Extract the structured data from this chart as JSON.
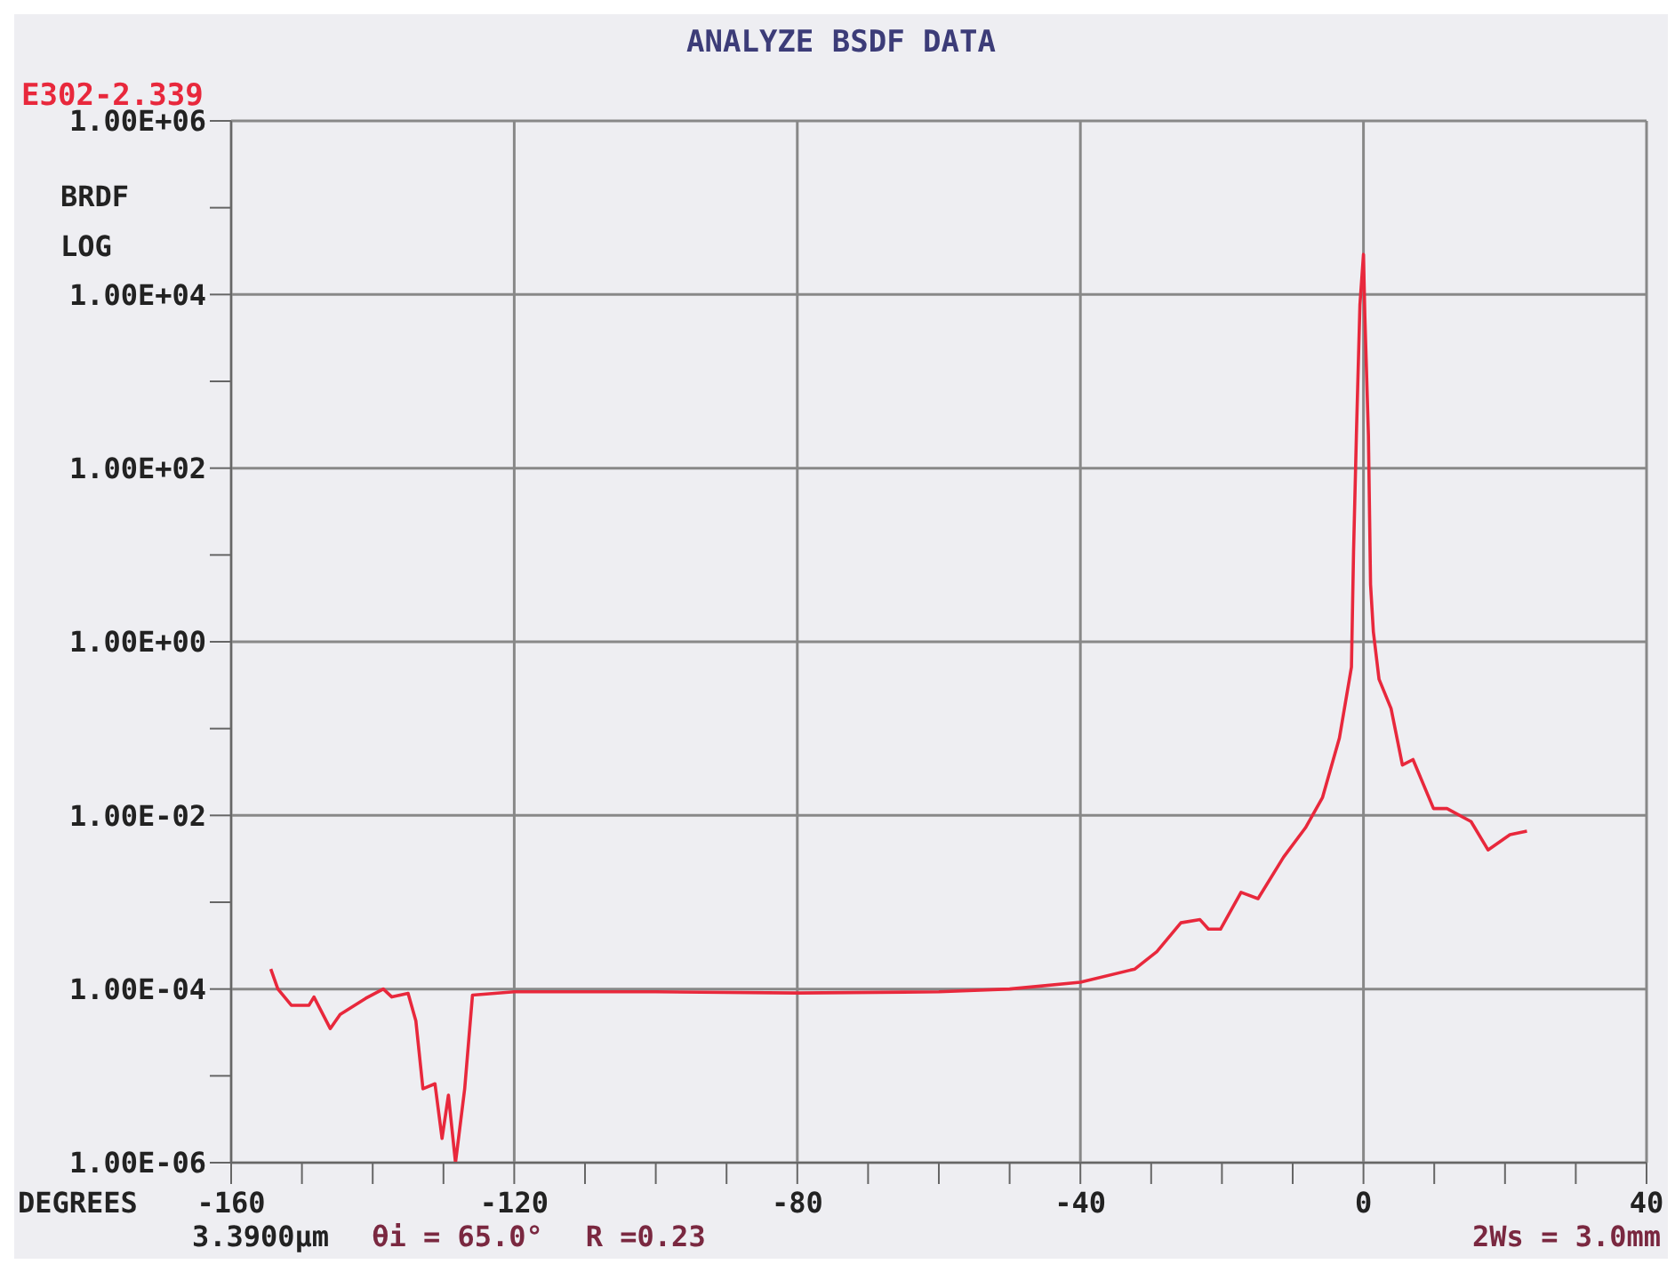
{
  "chart_data": {
    "type": "line",
    "title": "ANALYZE BSDF DATA",
    "subtitle": "E302-2.339",
    "ylabel": "BRDF LOG",
    "xlabel": "DEGREES",
    "annotations": [
      "3.3900µm",
      "θi = 65.0°",
      "R =0.23",
      "2Ws = 3.0mm"
    ],
    "log": "y",
    "grid": true,
    "legend": false,
    "marker": "none",
    "line_style": "solid",
    "xlim": [
      -160,
      40
    ],
    "xticks": [
      -160,
      {
        "value": -150,
        "label": null
      },
      {
        "value": -140,
        "label": null
      },
      {
        "value": -130,
        "label": null
      },
      -120,
      {
        "value": -110,
        "label": null
      },
      {
        "value": -100,
        "label": null
      },
      {
        "value": -90,
        "label": null
      },
      -80,
      {
        "value": -70,
        "label": null
      },
      {
        "value": -60,
        "label": null
      },
      {
        "value": -50,
        "label": null
      },
      -40,
      {
        "value": -30,
        "label": null
      },
      {
        "value": -20,
        "label": null
      },
      {
        "value": -10,
        "label": null
      },
      0,
      {
        "value": 10,
        "label": null
      },
      {
        "value": 20,
        "label": null
      },
      {
        "value": 30,
        "label": null
      },
      40
    ],
    "ylim": [
      1e-06,
      1000000.0
    ],
    "yticks": [
      {
        "value": 1e-06,
        "label": "1.00E-06"
      },
      {
        "value": 1e-05,
        "label": null
      },
      {
        "value": 0.0001,
        "label": "1.00E-04"
      },
      {
        "value": 0.001,
        "label": null
      },
      {
        "value": 0.01,
        "label": "1.00E-02"
      },
      {
        "value": 0.1,
        "label": null
      },
      {
        "value": 1,
        "label": "1.00E+00"
      },
      {
        "value": 10,
        "label": null
      },
      {
        "value": 100,
        "label": "1.00E+02"
      },
      {
        "value": 1000,
        "label": null
      },
      {
        "value": 10000,
        "label": "1.00E+04"
      },
      {
        "value": 100000,
        "label": null
      },
      {
        "value": 1000000,
        "label": "1.00E+06"
      }
    ],
    "x": [
      -154.4,
      -153.4,
      -151.5,
      -149,
      -148.3,
      -146,
      -144.6,
      -141,
      -138.5,
      -137.3,
      -135,
      -133.9,
      -132.9,
      -131.2,
      -130.2,
      -129.3,
      -128.3,
      -127,
      -125.9,
      -120,
      -100,
      -80,
      -60,
      -50,
      -40,
      -32.3,
      -29.2,
      -25.8,
      -23.1,
      -21.9,
      -20.2,
      -17.3,
      -14.9,
      -11.3,
      -8.2,
      -5.8,
      -3.4,
      -1.7,
      -1.4,
      -1.0,
      -0.5,
      0,
      0.2,
      0.7,
      1.0,
      1.4,
      2.2,
      3.9,
      5.5,
      7,
      9.9,
      11.8,
      15.2,
      17.6,
      20.7,
      23.1
    ],
    "series": [
      {
        "color": "#e8283c",
        "values": [
          0.00017,
          0.0001,
          6.5e-05,
          6.5e-05,
          8.1e-05,
          3.5e-05,
          5.1e-05,
          7.8e-05,
          0.0001,
          8.1e-05,
          8.9e-05,
          4.3e-05,
          7.1e-06,
          8.1e-06,
          1.9e-06,
          6e-06,
          1e-06,
          7.1e-06,
          8.5e-05,
          9.3e-05,
          9.3e-05,
          9e-05,
          9.3e-05,
          0.0001,
          0.00012,
          0.00017,
          0.00027,
          0.00058,
          0.00063,
          0.00049,
          0.00049,
          0.0013,
          0.0011,
          0.0033,
          0.0072,
          0.016,
          0.078,
          0.51,
          11,
          240,
          7600,
          29000,
          5500,
          240,
          4.6,
          1.3,
          0.37,
          0.17,
          0.038,
          0.044,
          0.012,
          0.012,
          0.0085,
          0.004,
          0.006,
          0.0066
        ]
      }
    ]
  }
}
